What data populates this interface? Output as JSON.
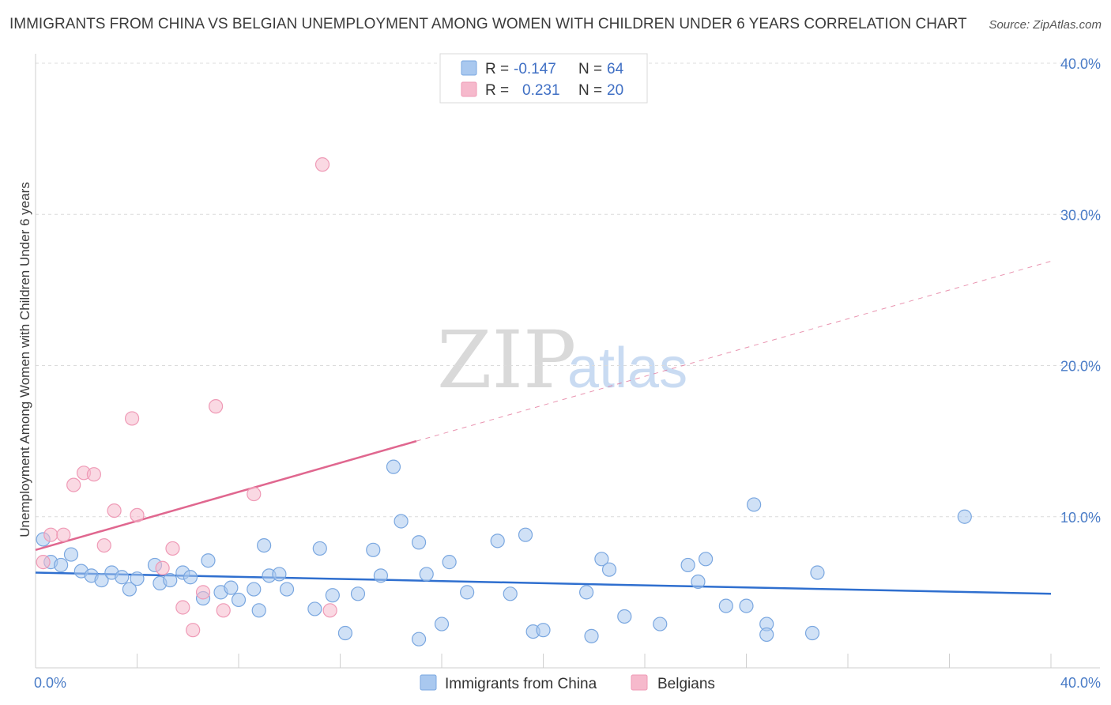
{
  "title": "IMMIGRANTS FROM CHINA VS BELGIAN UNEMPLOYMENT AMONG WOMEN WITH CHILDREN UNDER 6 YEARS CORRELATION CHART",
  "source": "Source: ZipAtlas.com",
  "watermark": {
    "zip": "ZIP",
    "atlas": "atlas"
  },
  "legend_top": {
    "r_label": "R =",
    "n_label": "N =",
    "rows": [
      {
        "r": "-0.147",
        "n": "64",
        "color": "#a9c8ef"
      },
      {
        "r": "0.231",
        "n": "20",
        "color": "#f6b9cc"
      }
    ]
  },
  "legend_bottom": [
    {
      "label": "Immigrants from China",
      "color": "#a9c8ef"
    },
    {
      "label": "Belgians",
      "color": "#f6b9cc"
    }
  ],
  "chart_data": {
    "type": "scatter",
    "title": "IMMIGRANTS FROM CHINA VS BELGIAN UNEMPLOYMENT AMONG WOMEN WITH CHILDREN UNDER 6 YEARS CORRELATION CHART",
    "xlabel": "",
    "ylabel": "Unemployment Among Women with Children Under 6 years",
    "xlim": [
      0,
      40
    ],
    "ylim": [
      0,
      40
    ],
    "x_tick_labels": [
      "0.0%",
      "40.0%"
    ],
    "y_tick_labels": [
      "10.0%",
      "20.0%",
      "30.0%",
      "40.0%"
    ],
    "y_ticks": [
      10,
      20,
      30,
      40
    ],
    "grid": true,
    "legend_position": "top-center",
    "series": [
      {
        "name": "Immigrants from China",
        "color": "#a9c8ef",
        "stroke": "#7aa7e0",
        "trend_color": "#2f6fcf",
        "trend": {
          "x": [
            0,
            40
          ],
          "y": [
            6.3,
            4.9
          ]
        },
        "points": [
          [
            0.3,
            8.5
          ],
          [
            0.6,
            7.0
          ],
          [
            1.0,
            6.8
          ],
          [
            1.4,
            7.5
          ],
          [
            1.8,
            6.4
          ],
          [
            2.2,
            6.1
          ],
          [
            2.6,
            5.8
          ],
          [
            3.0,
            6.3
          ],
          [
            3.4,
            6.0
          ],
          [
            3.7,
            5.2
          ],
          [
            4.0,
            5.9
          ],
          [
            4.7,
            6.8
          ],
          [
            4.9,
            5.6
          ],
          [
            5.3,
            5.8
          ],
          [
            5.8,
            6.3
          ],
          [
            6.1,
            6.0
          ],
          [
            6.6,
            4.6
          ],
          [
            6.8,
            7.1
          ],
          [
            7.3,
            5.0
          ],
          [
            7.7,
            5.3
          ],
          [
            8.0,
            4.5
          ],
          [
            8.6,
            5.2
          ],
          [
            8.8,
            3.8
          ],
          [
            9.0,
            8.1
          ],
          [
            9.2,
            6.1
          ],
          [
            9.6,
            6.2
          ],
          [
            9.9,
            5.2
          ],
          [
            11.0,
            3.9
          ],
          [
            11.2,
            7.9
          ],
          [
            11.7,
            4.8
          ],
          [
            12.2,
            2.3
          ],
          [
            12.7,
            4.9
          ],
          [
            13.3,
            7.8
          ],
          [
            13.6,
            6.1
          ],
          [
            14.1,
            13.3
          ],
          [
            14.4,
            9.7
          ],
          [
            15.1,
            1.9
          ],
          [
            15.1,
            8.3
          ],
          [
            15.4,
            6.2
          ],
          [
            16.0,
            2.9
          ],
          [
            16.3,
            7.0
          ],
          [
            17.0,
            5.0
          ],
          [
            18.2,
            8.4
          ],
          [
            18.7,
            4.9
          ],
          [
            19.3,
            8.8
          ],
          [
            19.6,
            2.4
          ],
          [
            20.0,
            2.5
          ],
          [
            21.7,
            5.0
          ],
          [
            21.9,
            2.1
          ],
          [
            22.3,
            7.2
          ],
          [
            22.6,
            6.5
          ],
          [
            23.2,
            3.4
          ],
          [
            24.6,
            2.9
          ],
          [
            25.7,
            6.8
          ],
          [
            26.1,
            5.7
          ],
          [
            26.4,
            7.2
          ],
          [
            27.2,
            4.1
          ],
          [
            28.0,
            4.1
          ],
          [
            28.3,
            10.8
          ],
          [
            28.8,
            2.9
          ],
          [
            28.8,
            2.2
          ],
          [
            30.6,
            2.3
          ],
          [
            30.8,
            6.3
          ],
          [
            36.6,
            10.0
          ]
        ]
      },
      {
        "name": "Belgians",
        "color": "#f6b9cc",
        "stroke": "#ef9ab6",
        "trend_color": "#e0678f",
        "trend": {
          "x": [
            0,
            15
          ],
          "y": [
            7.8,
            15.0
          ]
        },
        "trend_dashed_extension": {
          "x": [
            15,
            40
          ],
          "y": [
            15.0,
            26.9
          ]
        },
        "points": [
          [
            0.3,
            7.0
          ],
          [
            0.6,
            8.8
          ],
          [
            1.1,
            8.8
          ],
          [
            1.5,
            12.1
          ],
          [
            1.9,
            12.9
          ],
          [
            2.3,
            12.8
          ],
          [
            2.7,
            8.1
          ],
          [
            3.1,
            10.4
          ],
          [
            3.8,
            16.5
          ],
          [
            4.0,
            10.1
          ],
          [
            5.0,
            6.6
          ],
          [
            5.4,
            7.9
          ],
          [
            5.8,
            4.0
          ],
          [
            6.2,
            2.5
          ],
          [
            6.6,
            5.0
          ],
          [
            7.1,
            17.3
          ],
          [
            7.4,
            3.8
          ],
          [
            8.6,
            11.5
          ],
          [
            11.3,
            33.3
          ],
          [
            11.6,
            3.8
          ]
        ]
      }
    ]
  }
}
